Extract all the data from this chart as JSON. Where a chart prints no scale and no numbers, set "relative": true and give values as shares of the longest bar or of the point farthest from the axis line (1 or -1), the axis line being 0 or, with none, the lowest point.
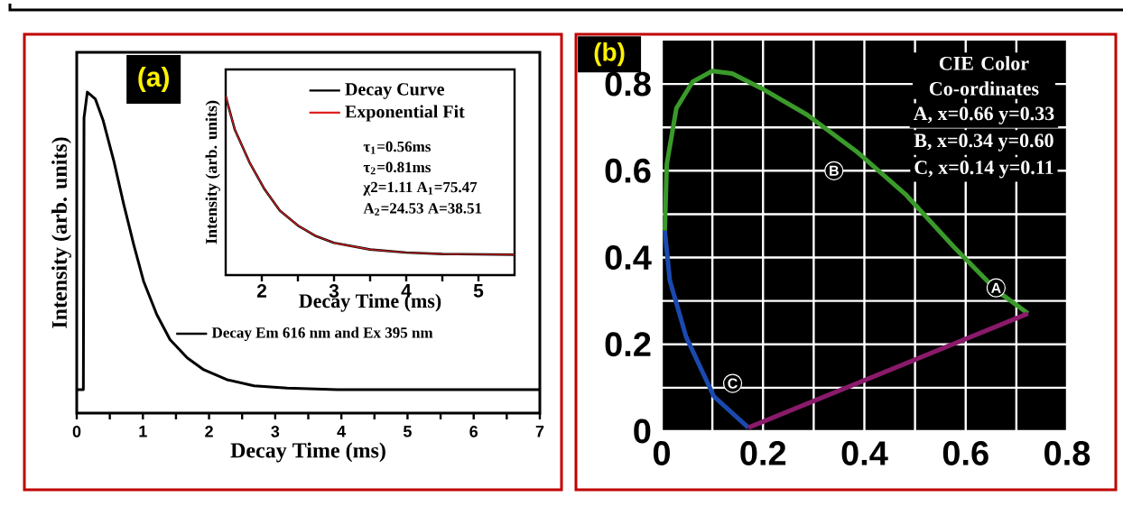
{
  "chart_data": [
    {
      "type": "line",
      "relative": true,
      "xlim": [
        0,
        7
      ],
      "xticks": [
        0,
        {
          "value": 0.5,
          "label": null
        },
        1,
        {
          "value": 1.5,
          "label": null
        },
        2,
        {
          "value": 2.5,
          "label": null
        },
        3,
        {
          "value": 3.5,
          "label": null
        },
        4,
        {
          "value": 4.5,
          "label": null
        },
        5,
        {
          "value": 5.5,
          "label": null
        },
        6,
        {
          "value": 6.5,
          "label": null
        },
        7
      ],
      "xlabel": "Decay Time (ms)",
      "ylabel": "Intensity (arb. units)",
      "legend": "right",
      "annotations": [
        "(a)"
      ],
      "series": [
        {
          "name": "Decay Em 616 nm and Ex 395 nm",
          "color": "#000000",
          "x": [
            0,
            0.1,
            0.11,
            0.16,
            0.28,
            0.4,
            0.56,
            0.71,
            0.86,
            1.01,
            1.21,
            1.41,
            1.67,
            1.92,
            2.27,
            2.68,
            3.18,
            3.94,
            7
          ],
          "values": [
            0.073,
            0.073,
            0.92,
            1.0,
            0.979,
            0.911,
            0.786,
            0.651,
            0.526,
            0.411,
            0.307,
            0.229,
            0.172,
            0.135,
            0.104,
            0.085,
            0.078,
            0.073,
            0.073
          ]
        }
      ]
    },
    {
      "type": "line",
      "relative": true,
      "xlim": [
        1.5,
        5.5
      ],
      "xticks": [
        2,
        {
          "value": 2.5,
          "label": null
        },
        3,
        {
          "value": 3.5,
          "label": null
        },
        4,
        {
          "value": 4.5,
          "label": null
        },
        5
      ],
      "xlabel": "Decay Time (ms)",
      "ylabel": "Intensity (arb. units)",
      "legend": "top right",
      "annotations": [
        "τ$_{1}$=0.56ms",
        "τ$_{2}$=0.81ms",
        "χ2=1.11 A$_{1}$=75.47",
        "A$_{2}$=24.53  A=38.51"
      ],
      "series": [
        {
          "name": "Decay Curve",
          "color": "#000000",
          "x": [
            1.5,
            1.625,
            1.83,
            2.04,
            2.25,
            2.5,
            2.75,
            3.0,
            3.5,
            4.0,
            4.5,
            5.5
          ],
          "values": [
            1.0,
            0.815,
            0.63,
            0.479,
            0.361,
            0.277,
            0.218,
            0.18,
            0.143,
            0.126,
            0.118,
            0.114
          ]
        },
        {
          "name": "Exponential Fit",
          "color": "#e02020",
          "x": [
            1.5,
            1.625,
            1.83,
            2.04,
            2.25,
            2.5,
            2.75,
            3.0,
            3.5,
            4.0,
            4.5,
            5.5
          ],
          "values": [
            1.0,
            0.815,
            0.63,
            0.479,
            0.361,
            0.277,
            0.218,
            0.18,
            0.143,
            0.126,
            0.118,
            0.114
          ]
        }
      ]
    },
    {
      "type": "scatter",
      "xlim": [
        0,
        0.8
      ],
      "ylim": [
        0,
        0.9
      ],
      "xticks": [
        0,
        {
          "value": 0.1,
          "label": null
        },
        0.2,
        {
          "value": 0.3,
          "label": null
        },
        0.4,
        {
          "value": 0.5,
          "label": null
        },
        0.6,
        {
          "value": 0.7,
          "label": null
        },
        0.8
      ],
      "yticks": [
        0,
        {
          "value": 0.1,
          "label": null
        },
        0.2,
        {
          "value": 0.3,
          "label": null
        },
        0.4,
        {
          "value": 0.5,
          "label": null
        },
        0.6,
        {
          "value": 0.7,
          "label": null
        },
        0.8
      ],
      "grid": true,
      "annotations": [
        "(b)",
        "CIE Color Co-ordinates",
        "A,  x=0.66 y=0.33",
        "B,  x=0.34 y=0.60",
        "C,  x=0.14 y=0.11",
        {
          "text": "A",
          "x": 0.66,
          "y": 0.33
        },
        {
          "text": "B",
          "x": 0.34,
          "y": 0.6
        },
        {
          "text": "C",
          "x": 0.14,
          "y": 0.11
        }
      ],
      "series": [
        {
          "color": "#000000",
          "x": [
            0.66,
            0.34,
            0.14
          ],
          "values": [
            0.33,
            0.6,
            0.11
          ]
        },
        {
          "type": "line",
          "color": "#1a4ab0",
          "x": [
            0.006,
            0.016,
            0.048,
            0.103,
            0.171
          ],
          "values": [
            0.462,
            0.347,
            0.218,
            0.08,
            0.008
          ]
        },
        {
          "type": "line",
          "color": "#3a9a2a",
          "x": [
            0.006,
            0.01,
            0.029,
            0.061,
            0.1,
            0.139,
            0.197,
            0.287,
            0.384,
            0.481,
            0.577,
            0.661,
            0.723
          ],
          "values": [
            0.462,
            0.615,
            0.744,
            0.805,
            0.83,
            0.824,
            0.79,
            0.729,
            0.645,
            0.546,
            0.424,
            0.324,
            0.271
          ]
        },
        {
          "type": "line",
          "color": "#8a1a6a",
          "x": [
            0.171,
            0.723
          ],
          "values": [
            0.008,
            0.271
          ]
        }
      ]
    }
  ]
}
